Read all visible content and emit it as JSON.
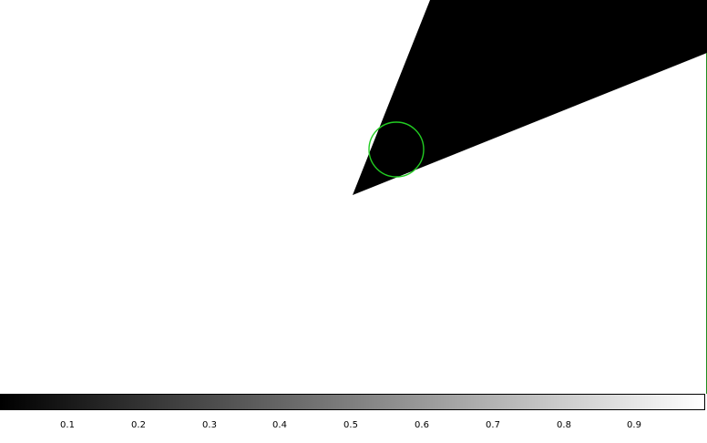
{
  "viewer": {
    "colormap": {
      "start_color": "#000000",
      "end_color": "#ffffff",
      "tick_labels": [
        "0.1",
        "0.2",
        "0.3",
        "0.4",
        "0.5",
        "0.6",
        "0.7",
        "0.8",
        "0.9"
      ]
    },
    "region": {
      "shape": "circle",
      "color": "#22cc22"
    },
    "image": {
      "background_color": "#ffffff",
      "foreground_color": "#000000"
    }
  }
}
